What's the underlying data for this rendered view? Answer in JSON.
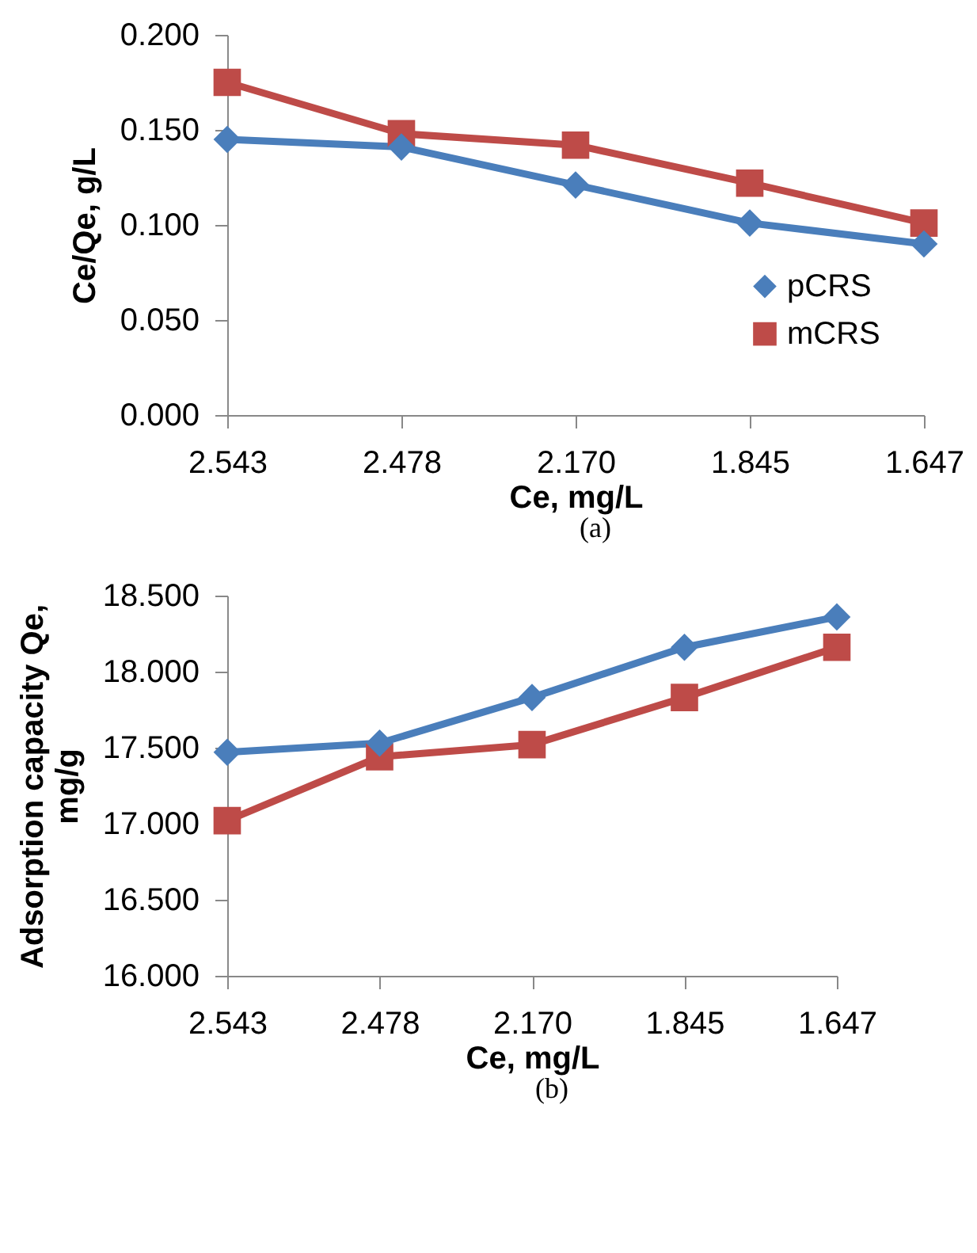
{
  "chart_data": [
    {
      "type": "line",
      "xlabel": "Ce, mg/L",
      "ylabel": "Ce/Qe, g/L",
      "categories": [
        "2.543",
        "2.478",
        "2.170",
        "1.845",
        "1.647"
      ],
      "ylim": [
        0,
        0.2
      ],
      "yticks": [
        {
          "value": 0,
          "label": "0.000"
        },
        {
          "value": 0.05,
          "label": "0.050"
        },
        {
          "value": 0.1,
          "label": "0.100"
        },
        {
          "value": 0.15,
          "label": "0.150"
        },
        {
          "value": 0.2,
          "label": "0.200"
        }
      ],
      "series": [
        {
          "name": "pCRS",
          "color": "#4a7ebb",
          "marker": "diamond",
          "values": [
            0.145,
            0.141,
            0.121,
            0.101,
            0.09
          ]
        },
        {
          "name": "mCRS",
          "color": "#be4b48",
          "marker": "square",
          "values": [
            0.175,
            0.148,
            0.142,
            0.122,
            0.101
          ]
        }
      ],
      "legend": "bottom right",
      "grid": false,
      "annotations": [
        "(a)"
      ]
    },
    {
      "type": "line",
      "xlabel": "Ce, mg/L",
      "ylabel": "Adsorption capacity Qe, mg/g",
      "categories": [
        "2.543",
        "2.478",
        "2.170",
        "1.845",
        "1.647"
      ],
      "ylim": [
        16,
        18.5
      ],
      "yticks": [
        {
          "value": 16,
          "label": "16.000"
        },
        {
          "value": 16.5,
          "label": "16.500"
        },
        {
          "value": 17,
          "label": "17.000"
        },
        {
          "value": 17.5,
          "label": "17.500"
        },
        {
          "value": 18,
          "label": "18.000"
        },
        {
          "value": 18.5,
          "label": "18.500"
        }
      ],
      "series": [
        {
          "name": "pCRS",
          "color": "#4a7ebb",
          "marker": "diamond",
          "values": [
            17.47,
            17.53,
            17.83,
            18.16,
            18.36
          ]
        },
        {
          "name": "mCRS",
          "color": "#be4b48",
          "marker": "square",
          "values": [
            17.02,
            17.44,
            17.52,
            17.83,
            18.16
          ]
        }
      ],
      "legend": "right",
      "grid": false,
      "annotations": [
        "(b)"
      ]
    }
  ]
}
